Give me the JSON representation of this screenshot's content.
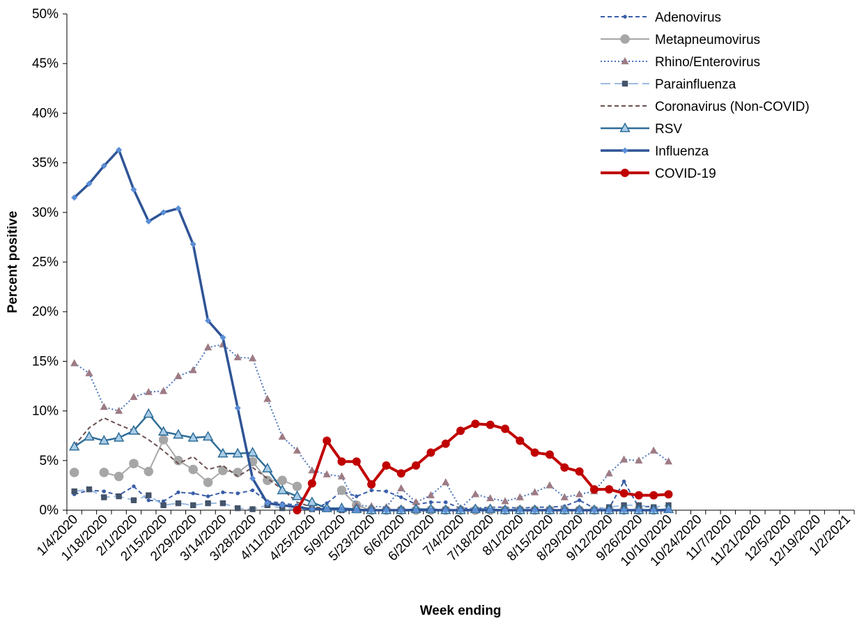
{
  "chart_data": {
    "type": "line",
    "title": "",
    "xlabel": "Week ending",
    "ylabel": "Percent positive",
    "ylim": [
      0,
      50
    ],
    "yticks": [
      "0%",
      "5%",
      "10%",
      "15%",
      "20%",
      "25%",
      "30%",
      "35%",
      "40%",
      "45%",
      "50%"
    ],
    "x_tick_labels": [
      "1/4/2020",
      "1/18/2020",
      "2/1/2020",
      "2/15/2020",
      "2/29/2020",
      "3/14/2020",
      "3/28/2020",
      "4/11/2020",
      "4/25/2020",
      "5/9/2020",
      "5/23/2020",
      "6/6/2020",
      "6/20/2020",
      "7/4/2020",
      "7/18/2020",
      "8/1/2020",
      "8/15/2020",
      "8/29/2020",
      "9/12/2020",
      "9/26/2020",
      "10/10/2020",
      "10/24/2020",
      "11/7/2020",
      "11/21/2020",
      "12/5/2020",
      "12/19/2020",
      "1/2/2021"
    ],
    "x_weeks_total": 53,
    "grid": false,
    "legend_position": "top-right",
    "series": [
      {
        "name": "Adenovirus",
        "color": "#3a5ea8",
        "style": "dashed",
        "marker": "dot",
        "values": [
          1.6,
          2.0,
          1.9,
          1.5,
          2.4,
          1.0,
          0.9,
          1.8,
          1.7,
          1.4,
          1.8,
          1.7,
          2.0,
          0.9,
          0.7,
          0.5,
          0.0,
          0.7,
          1.9,
          1.4,
          2.0,
          1.9,
          1.3,
          0.6,
          0.8,
          0.8,
          0.2,
          0.2,
          0.3,
          0.3,
          0.2,
          0.3,
          0.3,
          0.4,
          1.0,
          0.2,
          0.2,
          2.9,
          0.3,
          0.4
        ]
      },
      {
        "name": "Metapneumovirus",
        "color": "#a6a6a6",
        "style": "solid",
        "marker": "circle",
        "values": [
          3.8,
          null,
          3.8,
          3.4,
          4.7,
          3.9,
          7.1,
          5.0,
          4.1,
          2.8,
          4.0,
          3.8,
          4.9,
          3.0,
          3.0,
          2.4,
          null,
          null,
          2.0,
          0.5,
          0.0,
          0.0,
          0.0,
          0.0,
          0.0,
          0.0,
          0.0,
          0.0,
          0.0,
          0.0,
          0.0,
          0.0,
          0.0,
          0.0,
          0.0,
          0.0,
          0.0,
          0.0,
          0.0,
          0.0
        ]
      },
      {
        "name": "Rhino/Enterovirus",
        "color": "#4a72b8",
        "marker_color": "#9e7b84",
        "style": "dotted",
        "marker": "triangle",
        "values": [
          14.8,
          13.8,
          10.4,
          10.0,
          11.4,
          11.9,
          12.0,
          13.5,
          14.1,
          16.4,
          16.7,
          15.4,
          15.3,
          11.2,
          7.4,
          6.0,
          4.0,
          3.6,
          3.4,
          0.5,
          0.4,
          0.3,
          2.2,
          0.8,
          1.5,
          2.8,
          0.2,
          1.6,
          1.2,
          0.9,
          1.3,
          1.8,
          2.5,
          1.3,
          1.6,
          1.9,
          3.7,
          5.1,
          5.0,
          6.0,
          4.9
        ]
      },
      {
        "name": "Parainfluenza",
        "color": "#9bbbe3",
        "marker_color": "#44546a",
        "style": "longdash",
        "marker": "square",
        "values": [
          1.9,
          2.1,
          1.3,
          1.4,
          1.0,
          1.5,
          0.5,
          0.7,
          0.5,
          0.7,
          0.7,
          0.2,
          0.1,
          0.5,
          0.2,
          0.1,
          0.1,
          0.1,
          0.0,
          0.0,
          0.0,
          0.0,
          0.0,
          0.0,
          0.0,
          0.0,
          0.0,
          0.0,
          0.0,
          0.0,
          0.0,
          0.0,
          0.0,
          0.0,
          0.0,
          0.0,
          0.3,
          0.5,
          0.5,
          0.3,
          0.5
        ]
      },
      {
        "name": "Coronavirus (Non-COVID)",
        "color": "#6b4f4f",
        "style": "dashed",
        "marker": "none",
        "values": [
          6.5,
          8.3,
          9.3,
          8.6,
          8.0,
          7.1,
          6.0,
          4.7,
          5.4,
          4.1,
          4.5,
          3.4,
          4.3,
          3.2,
          2.1,
          0.8,
          0.3,
          0.2,
          0.1,
          0.1,
          0.0,
          0.0,
          0.0,
          0.0,
          0.0,
          0.0,
          0.0,
          0.0,
          0.0,
          0.0,
          0.0,
          0.0,
          0.0,
          0.0,
          0.0,
          0.0,
          0.0,
          0.0,
          0.0,
          0.0,
          0.0
        ]
      },
      {
        "name": "RSV",
        "color": "#2e6c97",
        "marker_color": "#a9cde8",
        "style": "solid",
        "marker": "triangle",
        "values": [
          6.4,
          7.4,
          7.0,
          7.3,
          8.0,
          9.7,
          7.9,
          7.6,
          7.3,
          7.4,
          5.7,
          5.7,
          5.8,
          4.2,
          2.0,
          1.4,
          0.8,
          0.2,
          0.2,
          0.1,
          0.0,
          0.0,
          0.0,
          0.1,
          0.1,
          0.0,
          0.0,
          0.1,
          0.1,
          0.0,
          0.0,
          0.0,
          0.0,
          0.0,
          0.0,
          0.0,
          0.0,
          0.0,
          0.0,
          0.0,
          0.1
        ]
      },
      {
        "name": "Influenza",
        "color": "#2f5496",
        "marker_color": "#5b8ed6",
        "style": "solid",
        "marker": "diamond",
        "values": [
          31.5,
          32.9,
          34.7,
          36.3,
          32.3,
          29.1,
          30.0,
          30.4,
          26.8,
          19.1,
          17.4,
          10.3,
          3.2,
          0.7,
          0.5,
          0.3,
          0.1,
          0.1,
          0.1,
          0.0,
          0.0,
          0.0,
          0.0,
          0.0,
          0.0,
          0.0,
          0.0,
          0.0,
          0.0,
          0.0,
          0.0,
          0.0,
          0.0,
          0.0,
          0.0,
          0.0,
          0.0,
          0.0,
          0.0,
          0.0,
          0.0
        ]
      },
      {
        "name": "COVID-19",
        "color": "#c00000",
        "style": "solid",
        "marker": "circle",
        "values": [
          null,
          null,
          null,
          null,
          null,
          null,
          null,
          null,
          null,
          null,
          null,
          null,
          null,
          null,
          null,
          0.0,
          2.7,
          7.0,
          4.9,
          4.9,
          2.6,
          4.5,
          3.7,
          4.5,
          5.8,
          6.7,
          8.0,
          8.7,
          8.6,
          8.2,
          7.0,
          5.8,
          5.6,
          4.3,
          3.9,
          2.1,
          2.1,
          1.7,
          1.5,
          1.5,
          1.6
        ]
      }
    ]
  }
}
